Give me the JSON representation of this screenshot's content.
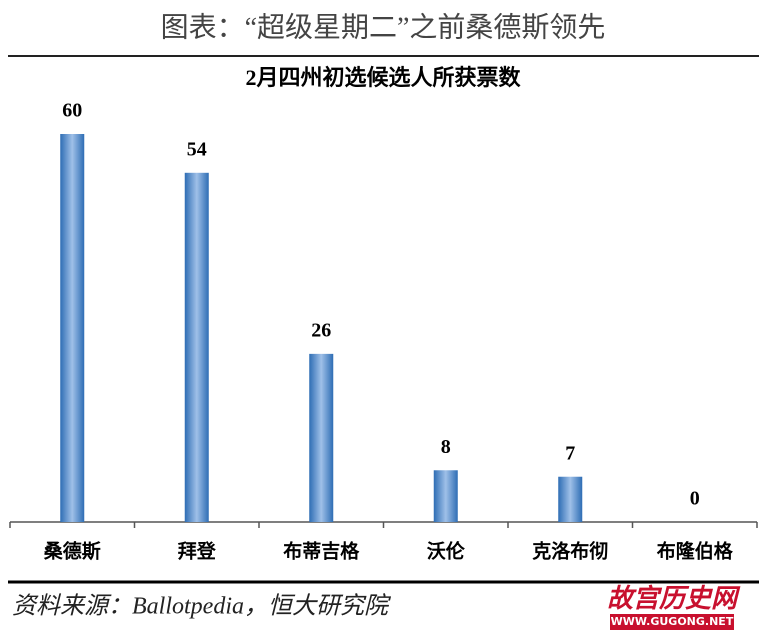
{
  "header": "图表：“超级星期二”之前桑德斯领先",
  "chart_data": {
    "type": "bar",
    "title": "2月四州初选候选人所获票数",
    "categories": [
      "桑德斯",
      "拜登",
      "布蒂吉格",
      "沃伦",
      "克洛布彻",
      "布隆伯格"
    ],
    "values": [
      60,
      54,
      26,
      8,
      7,
      0
    ],
    "color": "#2e6db4"
  },
  "source": "资料来源：Ballotpedia，恒大研究院",
  "watermark": {
    "name": "故宫历史网",
    "url": "WWW.GUGONG.NET"
  }
}
